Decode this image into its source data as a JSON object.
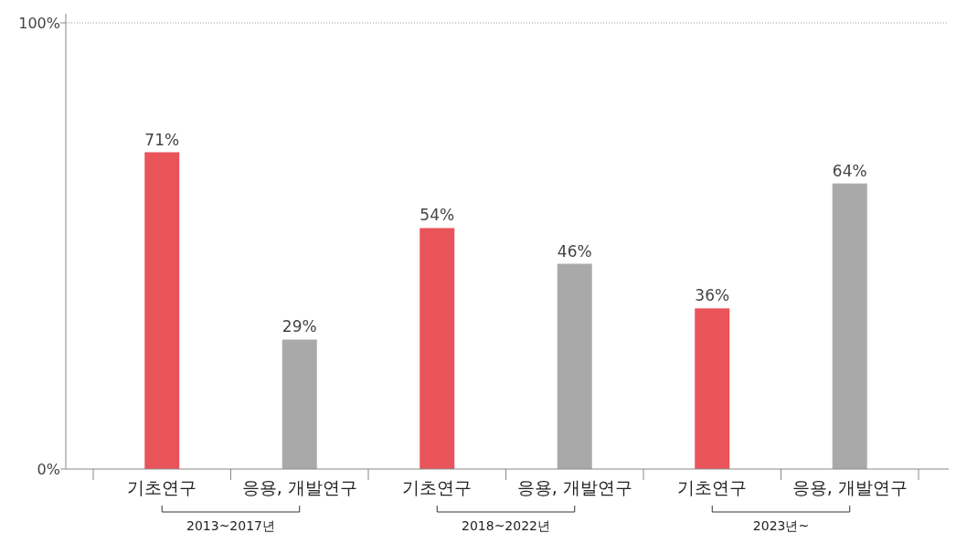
{
  "chart_data": {
    "type": "bar",
    "categories": [
      "기초연구",
      "응용, 개발연구",
      "기초연구",
      "응용, 개발연구",
      "기초연구",
      "응용, 개발연구"
    ],
    "values": [
      71,
      29,
      54,
      46,
      36,
      64
    ],
    "colors": [
      "#e8545a",
      "#a9a9a9",
      "#e8545a",
      "#a9a9a9",
      "#e8545a",
      "#a9a9a9"
    ],
    "value_labels": [
      "71%",
      "29%",
      "54%",
      "46%",
      "36%",
      "64%"
    ],
    "ylim": [
      0,
      100
    ],
    "yticks": [
      {
        "value": 0,
        "label": "0%"
      },
      {
        "value": 100,
        "label": "100%"
      }
    ],
    "ref_lines": [
      {
        "axis": "y",
        "value": 100,
        "line_style": "dotted",
        "color": "#999999"
      }
    ],
    "annotations": [
      "2013~2017년",
      "2018~2022년",
      "2023년~"
    ]
  }
}
